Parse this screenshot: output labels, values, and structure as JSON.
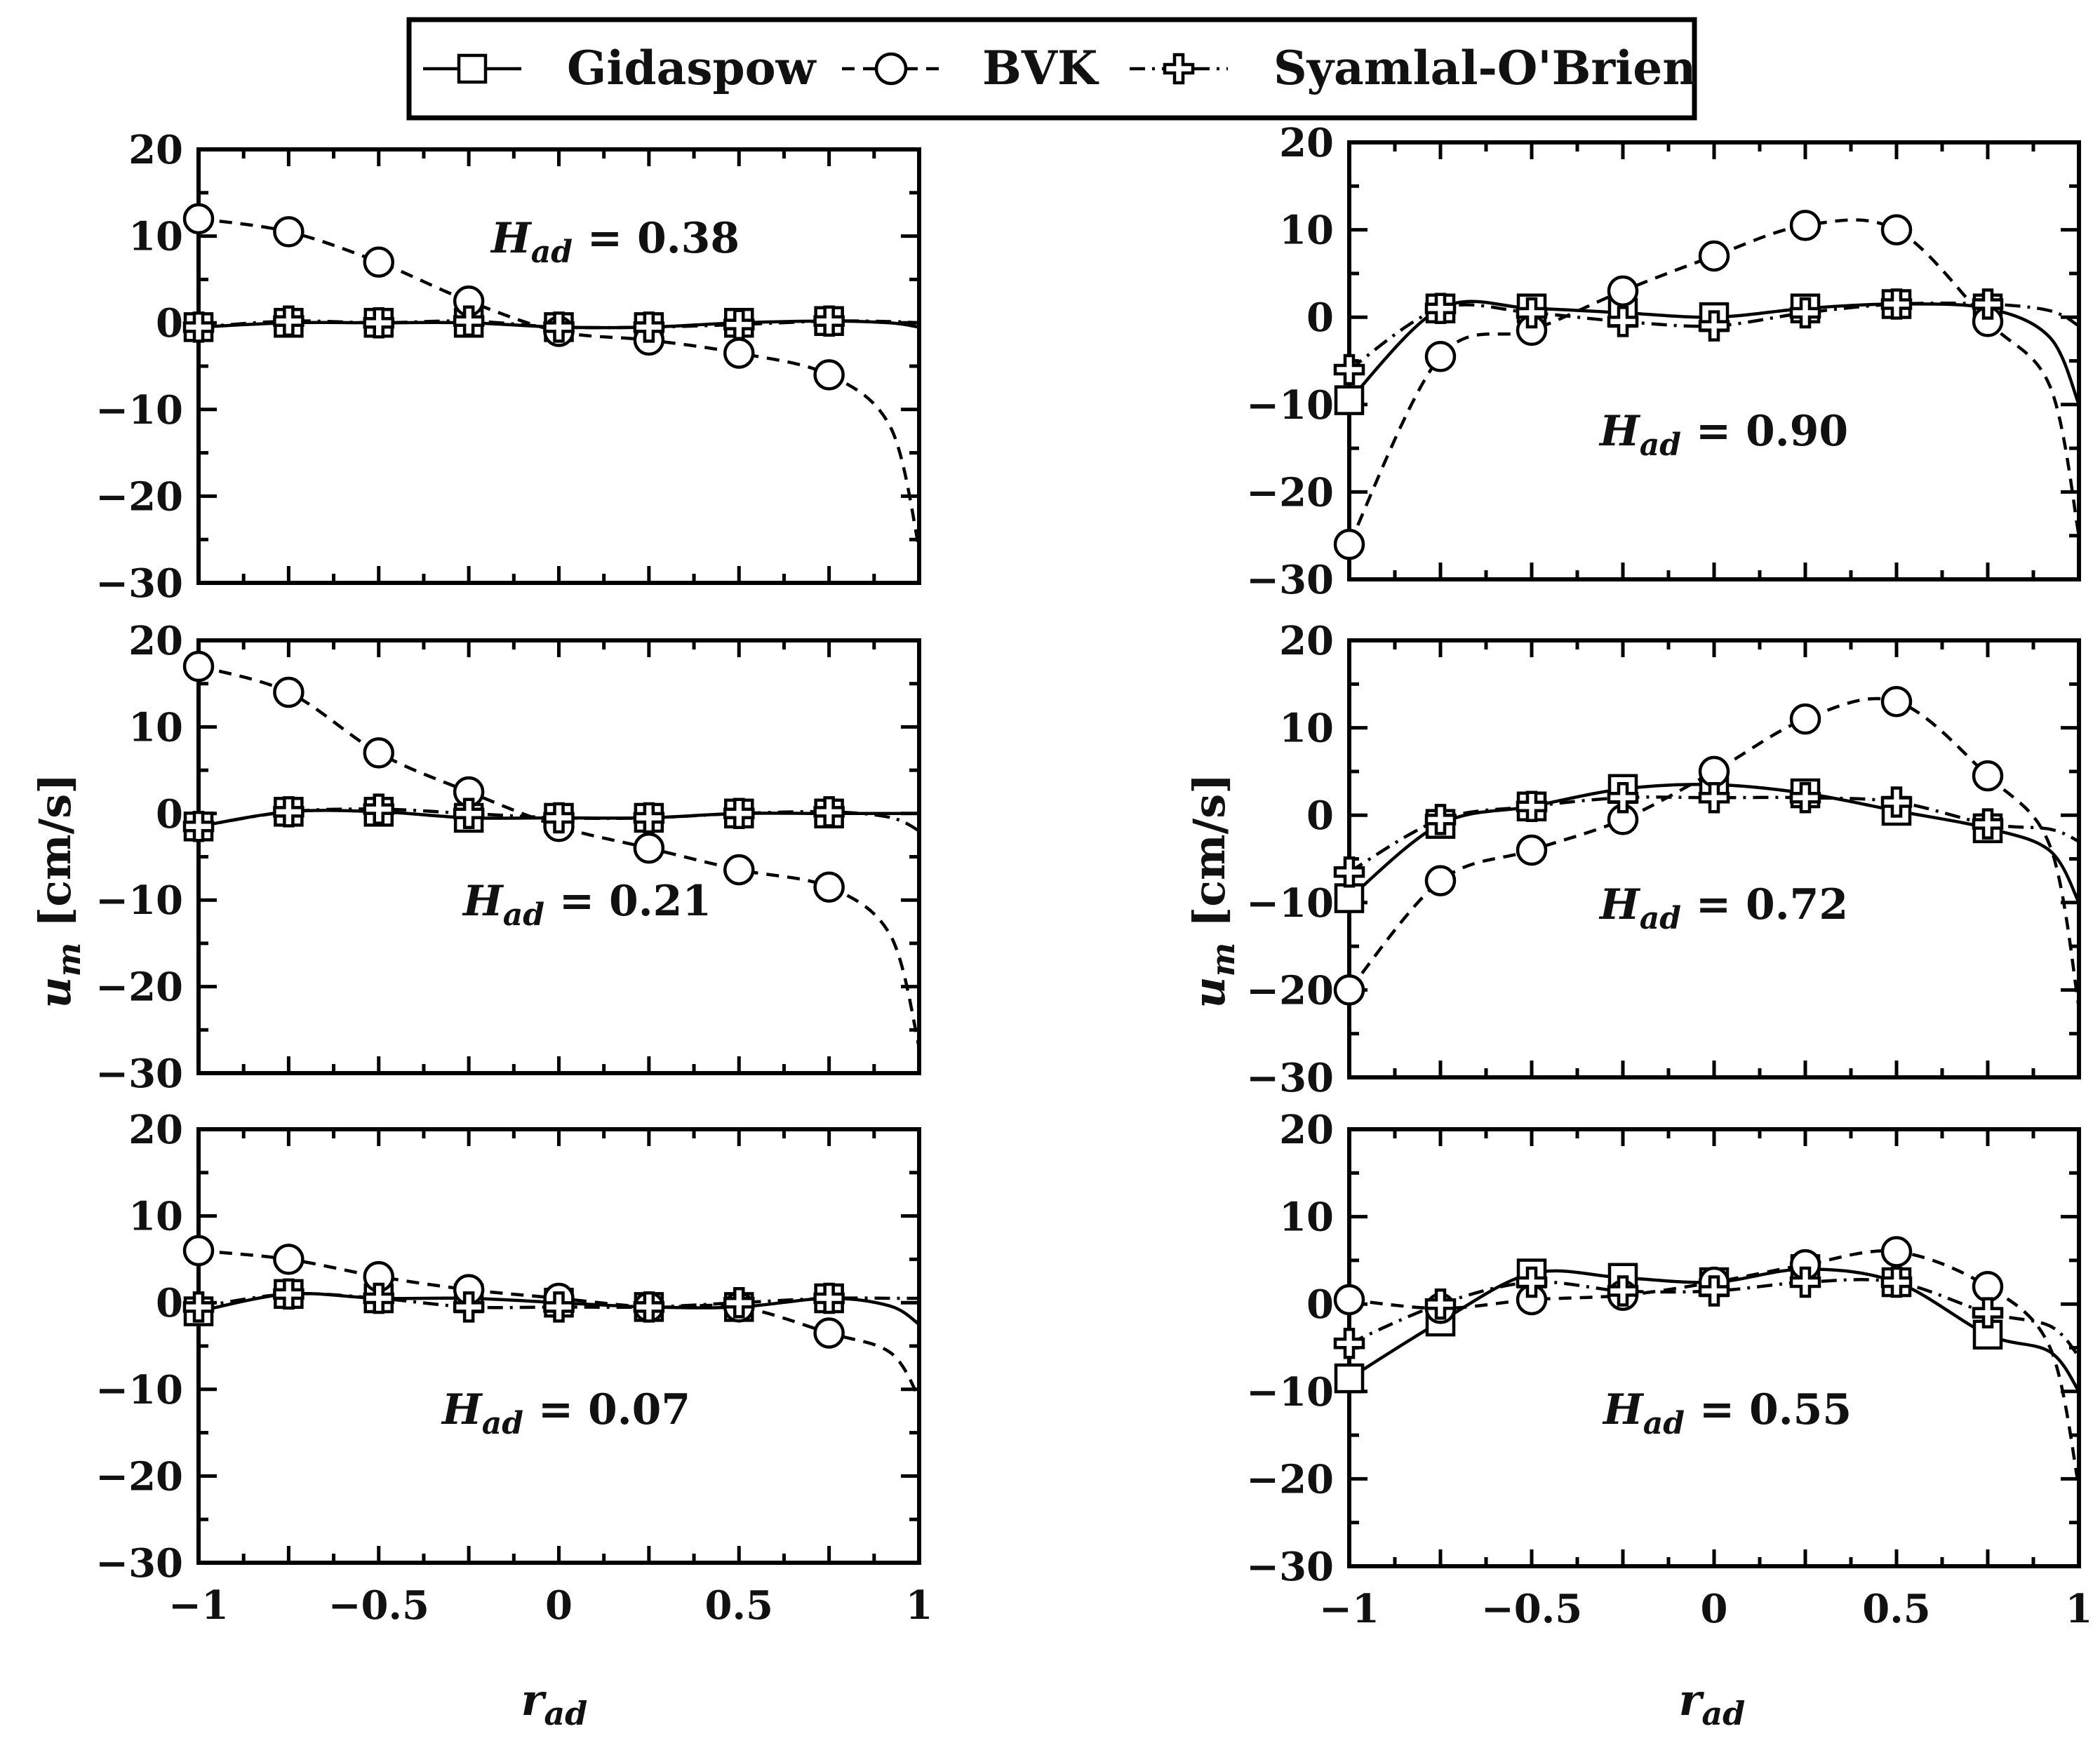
{
  "legend": {
    "entries": [
      {
        "name": "Gidaspow",
        "marker": "square",
        "line": "solid"
      },
      {
        "name": "BVK",
        "marker": "circle",
        "line": "dashed"
      },
      {
        "name": "Syamlal-O'Brien",
        "marker": "plus",
        "line": "dash-dot"
      }
    ]
  },
  "chart_data": [
    {
      "type": "line",
      "panel": "left-top",
      "annotation": {
        "var": "H",
        "sub": "ad",
        "value": "= 0.38"
      },
      "xlabel": "",
      "ylabel": "",
      "xlim": [
        -1,
        1
      ],
      "ylim": [
        -30,
        20
      ],
      "xticks": [],
      "yticks": [
        "20",
        "10",
        "0",
        "−10",
        "−20",
        "−30"
      ],
      "grid": false,
      "x": [
        -1,
        -0.75,
        -0.5,
        -0.25,
        0,
        0.25,
        0.5,
        0.75
      ],
      "series": [
        {
          "name": "Gidaspow",
          "values": [
            -0.5,
            0,
            0,
            0,
            -0.5,
            -0.5,
            0,
            0.2
          ],
          "line_end": -0.5
        },
        {
          "name": "BVK",
          "values": [
            12,
            10.5,
            7,
            2.5,
            -1,
            -2,
            -3.5,
            -6
          ],
          "line_end": -26
        },
        {
          "name": "Syamlal-O'Brien",
          "values": [
            -0.5,
            0.2,
            0,
            0.2,
            -0.5,
            -0.5,
            -0.2,
            0.2
          ],
          "line_end": 0
        }
      ]
    },
    {
      "type": "line",
      "panel": "left-middle",
      "annotation": {
        "var": "H",
        "sub": "ad",
        "value": "= 0.21"
      },
      "xlabel": "",
      "ylabel": "",
      "xlim": [
        -1,
        1
      ],
      "ylim": [
        -30,
        20
      ],
      "xticks": [],
      "yticks": [
        "20",
        "10",
        "0",
        "−10",
        "−20",
        "−30"
      ],
      "grid": false,
      "x": [
        -1,
        -0.75,
        -0.5,
        -0.25,
        0,
        0.25,
        0.5,
        0.75
      ],
      "series": [
        {
          "name": "Gidaspow",
          "values": [
            -1.5,
            0.2,
            0.2,
            -0.5,
            -0.5,
            -0.5,
            0,
            0
          ],
          "line_end": 0
        },
        {
          "name": "BVK",
          "values": [
            17,
            14,
            7,
            2.5,
            -1.5,
            -4,
            -6.5,
            -8.5
          ],
          "line_end": -27
        },
        {
          "name": "Syamlal-O'Brien",
          "values": [
            -1.5,
            0.2,
            0.5,
            0,
            -0.5,
            -0.5,
            0,
            0.2
          ],
          "line_end": -2
        }
      ]
    },
    {
      "type": "line",
      "panel": "left-bottom",
      "annotation": {
        "var": "H",
        "sub": "ad",
        "value": "= 0.07"
      },
      "xlabel": "r_ad",
      "ylabel": "",
      "xlim": [
        -1,
        1
      ],
      "ylim": [
        -30,
        20
      ],
      "xticks": [
        "−1",
        "−0.5",
        "0",
        "0.5",
        "1"
      ],
      "yticks": [
        "20",
        "10",
        "0",
        "−10",
        "−20",
        "−30"
      ],
      "grid": false,
      "x": [
        -1,
        -0.75,
        -0.5,
        -0.25,
        0,
        0.25,
        0.5,
        0.75
      ],
      "series": [
        {
          "name": "Gidaspow",
          "values": [
            -1,
            1,
            0.5,
            0.5,
            0,
            -0.5,
            -0.5,
            0.5
          ],
          "line_end": -2.5
        },
        {
          "name": "BVK",
          "values": [
            6,
            5,
            3,
            1.5,
            0.5,
            -0.5,
            -0.5,
            -3.5
          ],
          "line_end": -11
        },
        {
          "name": "Syamlal-O'Brien",
          "values": [
            -0.5,
            1,
            0.5,
            -0.5,
            -0.5,
            -0.5,
            0,
            0.5
          ],
          "line_end": 0.5
        }
      ]
    },
    {
      "type": "line",
      "panel": "right-top",
      "annotation": {
        "var": "H",
        "sub": "ad",
        "value": "= 0.90"
      },
      "xlabel": "",
      "ylabel": "",
      "xlim": [
        -1,
        1
      ],
      "ylim": [
        -30,
        20
      ],
      "xticks": [],
      "yticks": [
        "20",
        "10",
        "0",
        "−10",
        "−20",
        "−30"
      ],
      "grid": false,
      "x": [
        -1,
        -0.75,
        -0.5,
        -0.25,
        0,
        0.25,
        0.5,
        0.75
      ],
      "series": [
        {
          "name": "Gidaspow",
          "values": [
            -9.5,
            1,
            1,
            0.5,
            0,
            1,
            1.5,
            1
          ],
          "line_end": -10
        },
        {
          "name": "BVK",
          "values": [
            -26,
            -4.5,
            -1.5,
            3,
            7,
            10.5,
            10,
            -0.5
          ],
          "line_end": -25
        },
        {
          "name": "Syamlal-O'Brien",
          "values": [
            -6,
            1,
            0.5,
            -0.5,
            -1,
            0.5,
            1.5,
            1.5
          ],
          "line_end": -1
        }
      ]
    },
    {
      "type": "line",
      "panel": "right-middle",
      "annotation": {
        "var": "H",
        "sub": "ad",
        "value": "= 0.72"
      },
      "xlabel": "",
      "ylabel": "u_m [cm/s]",
      "xlim": [
        -1,
        1
      ],
      "ylim": [
        -30,
        20
      ],
      "xticks": [],
      "yticks": [
        "20",
        "10",
        "0",
        "−10",
        "−20",
        "−30"
      ],
      "grid": false,
      "x": [
        -1,
        -0.75,
        -0.5,
        -0.25,
        0,
        0.25,
        0.5,
        0.75
      ],
      "series": [
        {
          "name": "Gidaspow",
          "values": [
            -9.5,
            -1,
            1,
            3,
            3.5,
            2.5,
            0.5,
            -1.5
          ],
          "line_end": -10
        },
        {
          "name": "BVK",
          "values": [
            -20,
            -7.5,
            -4,
            -0.5,
            5,
            11,
            13,
            4.5
          ],
          "line_end": -22
        },
        {
          "name": "Syamlal-O'Brien",
          "values": [
            -6.5,
            -0.5,
            1,
            2,
            2,
            2,
            1.5,
            -1
          ],
          "line_end": -3
        }
      ]
    },
    {
      "type": "line",
      "panel": "right-bottom",
      "annotation": {
        "var": "H",
        "sub": "ad",
        "value": "= 0.55"
      },
      "xlabel": "r_ad",
      "ylabel": "",
      "xlim": [
        -1,
        1
      ],
      "ylim": [
        -30,
        20
      ],
      "xticks": [
        "−1",
        "−0.5",
        "0",
        "0.5",
        "1"
      ],
      "yticks": [
        "20",
        "10",
        "0",
        "−10",
        "−20",
        "−30"
      ],
      "grid": false,
      "x": [
        -1,
        -0.75,
        -0.5,
        -0.25,
        0,
        0.25,
        0.5,
        0.75
      ],
      "series": [
        {
          "name": "Gidaspow",
          "values": [
            -8.5,
            -2,
            3.5,
            3,
            2.5,
            4,
            2.5,
            -3.5
          ],
          "line_end": -10
        },
        {
          "name": "BVK",
          "values": [
            0.5,
            -0.5,
            0.5,
            1,
            2.5,
            4.5,
            6,
            2
          ],
          "line_end": -21
        },
        {
          "name": "Syamlal-O'Brien",
          "values": [
            -4.5,
            0,
            2.5,
            1.5,
            1.5,
            2.5,
            2.5,
            -1
          ],
          "line_end": -6
        }
      ]
    }
  ],
  "shared": {
    "ylabel_left": "u_m [cm/s]",
    "ylabel_var": "u",
    "ylabel_sub": "m",
    "ylabel_unit": " [cm/s]",
    "xlabel_var": "r",
    "xlabel_sub": "ad"
  }
}
